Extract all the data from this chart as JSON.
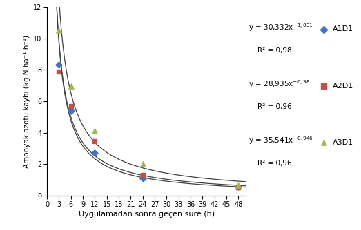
{
  "x_data": [
    3,
    6,
    12,
    24,
    48
  ],
  "A1D1_y": [
    8.3,
    5.4,
    2.7,
    1.1,
    0.55
  ],
  "A2D1_y": [
    7.9,
    5.7,
    3.45,
    1.3,
    0.5
  ],
  "A3D1_y": [
    10.5,
    6.95,
    4.1,
    2.0,
    0.65
  ],
  "A1D1_color": "#4472C4",
  "A2D1_color": "#C0504D",
  "A3D1_color": "#9BBB59",
  "curve_color": "#404040",
  "A1D1_coeff": 30.332,
  "A1D1_exp": -1.031,
  "A2D1_coeff": 28.935,
  "A2D1_exp": -0.98,
  "A3D1_coeff": 35.541,
  "A3D1_exp": -0.946,
  "xlabel": "Uygulamadan sonra geçen süre (h)",
  "ylabel": "Amonyak azotu kaybı (kg N ha⁻¹ h⁻¹)",
  "xlim": [
    0,
    50
  ],
  "ylim": [
    0,
    12
  ],
  "xticks": [
    0,
    3,
    6,
    9,
    12,
    15,
    18,
    21,
    24,
    27,
    30,
    33,
    36,
    39,
    42,
    45,
    48
  ],
  "yticks": [
    0,
    2,
    4,
    6,
    8,
    10,
    12
  ],
  "label_A1D1": "A1D1",
  "label_A2D1": "A2D1",
  "label_A3D1": "A3D1",
  "eq1_line1": "y = 30,332x",
  "eq1_exp": "-1,031",
  "eq1_r2": "R² = 0,98",
  "eq2_line1": "y = 28,935x",
  "eq2_exp": "-0,98",
  "eq2_r2": "R² = 0,96",
  "eq3_line1": "y = 35,541x",
  "eq3_exp": "-0,946",
  "eq3_r2": "R² = 0,96"
}
